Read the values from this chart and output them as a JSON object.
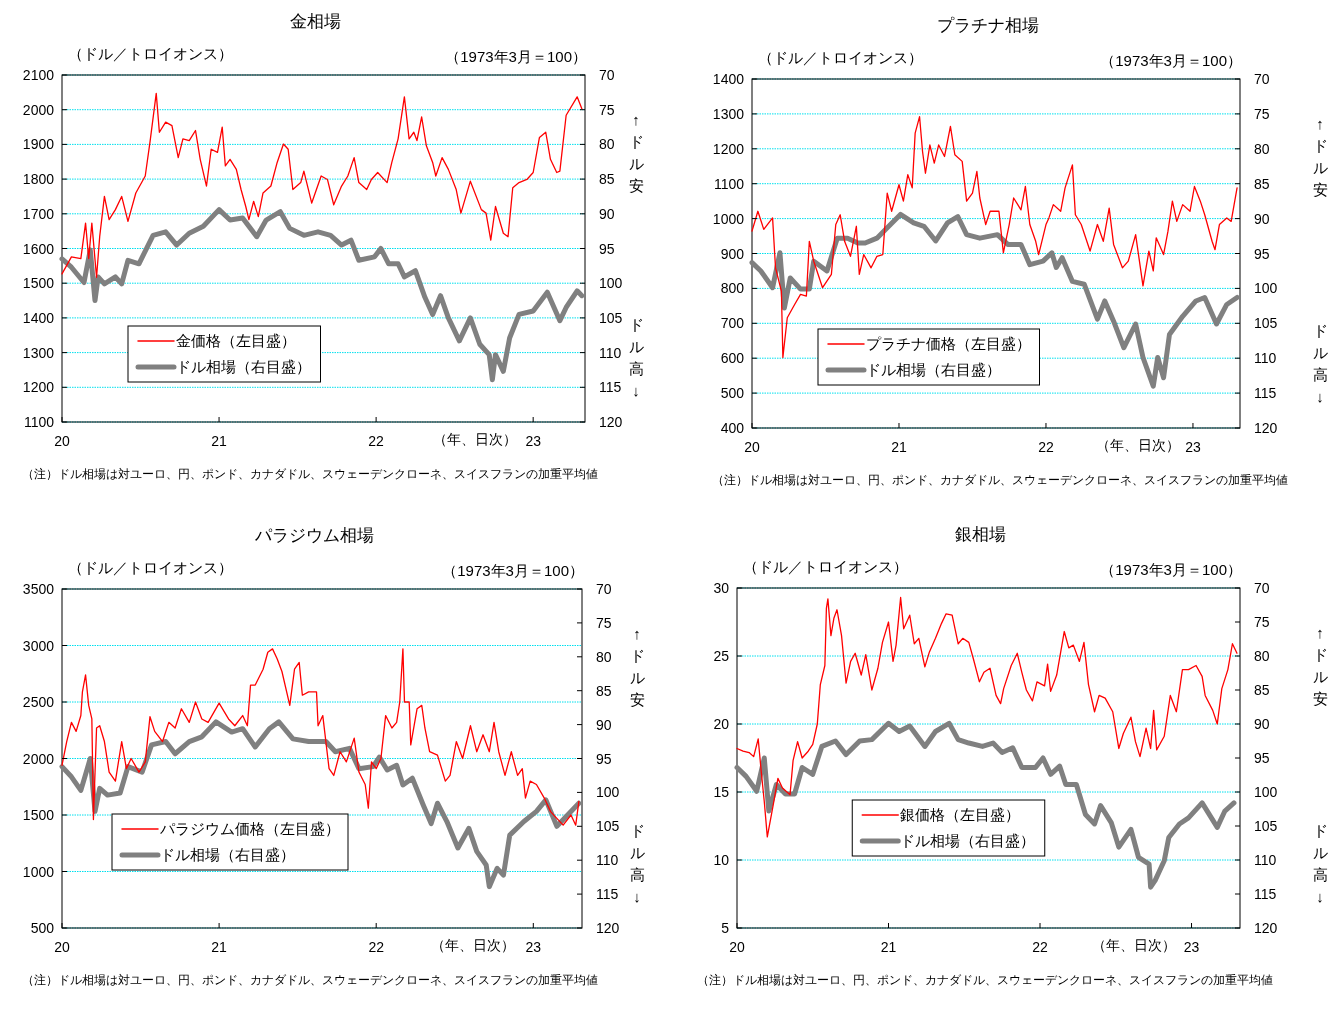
{
  "chart_data": [
    {
      "type": "line",
      "title": "金相場",
      "ylabel": "（ドル／トロイオンス）",
      "y2label": "（1973年3月＝100）",
      "xlabel": "（年、日次）",
      "xlim": [
        20,
        23.33
      ],
      "xticks": [
        20,
        21,
        22,
        23
      ],
      "ylim": [
        1100,
        2100
      ],
      "yticks": [
        1100,
        1200,
        1300,
        1400,
        1500,
        1600,
        1700,
        1800,
        1900,
        2000,
        2100
      ],
      "y2lim": [
        120,
        70
      ],
      "y2ticks": [
        70,
        75,
        80,
        85,
        90,
        95,
        100,
        105,
        110,
        115,
        120
      ],
      "grid": "y",
      "legend": "bottom left",
      "annotations": [
        "↑ドル安",
        "ドル高↓",
        "（注）ドル相場は対ユーロ、円、ポンド、カナダドル、スウェーデンクローネ、スイスフランの加重平均値"
      ],
      "series": [
        {
          "name": "金価格（左目盛）",
          "color": "#ff0000",
          "x": [
            20.0,
            20.06,
            20.12,
            20.15,
            20.17,
            20.19,
            20.22,
            20.24,
            20.27,
            20.3,
            20.34,
            20.38,
            20.42,
            20.47,
            20.53,
            20.56,
            20.6,
            20.62,
            20.66,
            20.7,
            20.74,
            20.77,
            20.81,
            20.85,
            20.88,
            20.92,
            20.95,
            20.99,
            21.02,
            21.04,
            21.07,
            21.11,
            21.14,
            21.17,
            21.19,
            21.22,
            21.25,
            21.28,
            21.33,
            21.37,
            21.41,
            21.44,
            21.47,
            21.52,
            21.54,
            21.59,
            21.65,
            21.69,
            21.73,
            21.78,
            21.82,
            21.86,
            21.89,
            21.94,
            21.97,
            22.01,
            22.07,
            22.1,
            22.14,
            22.18,
            22.21,
            22.24,
            22.26,
            22.29,
            22.32,
            22.36,
            22.38,
            22.42,
            22.46,
            22.51,
            22.54,
            22.6,
            22.67,
            22.7,
            22.73,
            22.76,
            22.81,
            22.84,
            22.87,
            22.91,
            22.96,
            23.0,
            23.04,
            23.08,
            23.11,
            23.15,
            23.17,
            23.21,
            23.28,
            23.31
          ],
          "values": [
            1527,
            1576,
            1571,
            1673,
            1571,
            1673,
            1517,
            1634,
            1750,
            1683,
            1712,
            1750,
            1678,
            1760,
            1809,
            1906,
            2047,
            1935,
            1964,
            1954,
            1862,
            1916,
            1911,
            1940,
            1857,
            1780,
            1886,
            1877,
            1950,
            1838,
            1857,
            1828,
            1770,
            1721,
            1683,
            1736,
            1692,
            1760,
            1780,
            1848,
            1901,
            1886,
            1770,
            1790,
            1823,
            1731,
            1809,
            1799,
            1726,
            1780,
            1809,
            1862,
            1790,
            1770,
            1799,
            1819,
            1790,
            1848,
            1916,
            2037,
            1916,
            1935,
            1911,
            1979,
            1896,
            1848,
            1809,
            1862,
            1828,
            1770,
            1702,
            1794,
            1712,
            1702,
            1624,
            1721,
            1644,
            1634,
            1775,
            1790,
            1799,
            1819,
            1920,
            1935,
            1857,
            1819,
            1823,
            1984,
            2037,
            2003
          ]
        },
        {
          "name": "ドル相場（右目盛）",
          "color": "#808080",
          "axis": "y2",
          "x": [
            20.0,
            20.06,
            20.14,
            20.18,
            20.21,
            20.23,
            20.27,
            20.34,
            20.38,
            20.42,
            20.49,
            20.58,
            20.66,
            20.73,
            20.81,
            20.9,
            21.0,
            21.07,
            21.15,
            21.24,
            21.3,
            21.39,
            21.45,
            21.54,
            21.63,
            21.71,
            21.78,
            21.84,
            21.89,
            21.99,
            22.03,
            22.08,
            22.14,
            22.18,
            22.25,
            22.31,
            22.36,
            22.41,
            22.46,
            22.53,
            22.6,
            22.66,
            22.72,
            22.74,
            22.76,
            22.81,
            22.85,
            22.91,
            23.0,
            23.09,
            23.17,
            23.21,
            23.28,
            23.31
          ],
          "values": [
            96.5,
            97.7,
            99.9,
            95.2,
            102.5,
            99.1,
            100.1,
            99.1,
            100.1,
            96.7,
            97.2,
            93.1,
            92.6,
            94.5,
            92.8,
            91.8,
            89.4,
            90.9,
            90.6,
            93.3,
            90.9,
            89.7,
            92.1,
            93.1,
            92.6,
            93.1,
            94.5,
            93.8,
            96.7,
            96.2,
            95.0,
            97.2,
            97.2,
            99.1,
            98.2,
            102.0,
            104.5,
            101.8,
            105.0,
            108.3,
            105.0,
            108.8,
            110.3,
            113.9,
            110.3,
            112.7,
            107.9,
            104.5,
            104.0,
            101.3,
            105.4,
            103.5,
            101.1,
            101.8
          ]
        }
      ]
    },
    {
      "type": "line",
      "title": "プラチナ相場",
      "ylabel": "（ドル／トロイオンス）",
      "y2label": "（1973年3月＝100）",
      "xlabel": "（年、日次）",
      "xlim": [
        20,
        23.32
      ],
      "xticks": [
        20,
        21,
        22,
        23
      ],
      "ylim": [
        400,
        1400
      ],
      "yticks": [
        400,
        500,
        600,
        700,
        800,
        900,
        1000,
        1100,
        1200,
        1300,
        1400
      ],
      "y2lim": [
        120,
        70
      ],
      "y2ticks": [
        70,
        75,
        80,
        85,
        90,
        95,
        100,
        105,
        110,
        115,
        120
      ],
      "grid": "y",
      "legend": "bottom left",
      "annotations": [
        "↑ドル安",
        "ドル高↓",
        "（注）ドル相場は対ユーロ、円、ポンド、カナダドル、スウェーデンクローネ、スイスフランの加重平均値"
      ],
      "series": [
        {
          "name": "プラチナ価格（左目盛）",
          "color": "#ff0000",
          "x": [
            20.0,
            20.04,
            20.08,
            20.14,
            20.16,
            20.2,
            20.21,
            20.24,
            20.29,
            20.33,
            20.37,
            20.39,
            20.42,
            20.45,
            20.48,
            20.54,
            20.57,
            20.6,
            20.63,
            20.67,
            20.71,
            20.73,
            20.76,
            20.81,
            20.85,
            20.89,
            20.92,
            20.95,
            21.0,
            21.03,
            21.06,
            21.09,
            21.11,
            21.14,
            21.16,
            21.18,
            21.21,
            21.24,
            21.27,
            21.31,
            21.35,
            21.38,
            21.43,
            21.46,
            21.5,
            21.53,
            21.55,
            21.59,
            21.62,
            21.68,
            21.71,
            21.75,
            21.78,
            21.83,
            21.86,
            21.89,
            21.93,
            21.95,
            22.0,
            22.02,
            22.05,
            22.1,
            22.13,
            22.18,
            22.2,
            22.24,
            22.3,
            22.35,
            22.39,
            22.43,
            22.46,
            22.52,
            22.56,
            22.61,
            22.66,
            22.7,
            22.73,
            22.75,
            22.8,
            22.83,
            22.86,
            22.89,
            22.93,
            22.98,
            23.01,
            23.05,
            23.08,
            23.13,
            23.15,
            23.18,
            23.23,
            23.26,
            23.3
          ],
          "values": [
            964,
            1021,
            969,
            1002,
            859,
            792,
            602,
            716,
            754,
            783,
            778,
            935,
            878,
            840,
            802,
            840,
            983,
            1011,
            935,
            892,
            978,
            840,
            897,
            859,
            892,
            897,
            1073,
            1021,
            1097,
            1050,
            1126,
            1088,
            1245,
            1292,
            1193,
            1130,
            1211,
            1159,
            1211,
            1178,
            1264,
            1183,
            1164,
            1050,
            1073,
            1135,
            1059,
            983,
            1021,
            1021,
            902,
            983,
            1059,
            1025,
            1092,
            983,
            935,
            897,
            983,
            1002,
            1040,
            1021,
            1088,
            1154,
            1011,
            983,
            907,
            983,
            935,
            1030,
            926,
            859,
            878,
            954,
            807,
            907,
            850,
            945,
            897,
            964,
            1050,
            992,
            1040,
            1021,
            1092,
            1050,
            1011,
            935,
            911,
            983,
            1002,
            992,
            1088
          ]
        },
        {
          "name": "ドル相場（右目盛）",
          "color": "#808080",
          "axis": "y2",
          "x": [
            20.0,
            20.06,
            20.14,
            20.19,
            20.22,
            20.26,
            20.33,
            20.39,
            20.42,
            20.51,
            20.58,
            20.65,
            20.72,
            20.77,
            20.85,
            20.92,
            21.01,
            21.1,
            21.17,
            21.25,
            21.33,
            21.4,
            21.46,
            21.55,
            21.67,
            21.74,
            21.83,
            21.89,
            21.98,
            22.04,
            22.07,
            22.11,
            22.18,
            22.26,
            22.35,
            22.4,
            22.46,
            22.53,
            22.61,
            22.66,
            22.73,
            22.76,
            22.8,
            22.84,
            22.93,
            23.02,
            23.08,
            23.16,
            23.23,
            23.3
          ],
          "values": [
            96.3,
            97.5,
            99.9,
            94.9,
            102.8,
            98.5,
            100.1,
            100.1,
            96.1,
            97.5,
            92.8,
            92.8,
            93.5,
            93.5,
            92.8,
            91.3,
            89.4,
            90.6,
            91.1,
            93.2,
            90.6,
            89.7,
            92.3,
            92.8,
            92.3,
            93.7,
            93.7,
            96.6,
            96.1,
            94.9,
            97.0,
            95.6,
            99.0,
            99.4,
            104.4,
            101.8,
            104.7,
            108.5,
            105.1,
            109.9,
            114.0,
            109.9,
            112.8,
            106.6,
            104.0,
            101.8,
            101.3,
            105.1,
            102.3,
            101.3
          ]
        }
      ]
    },
    {
      "type": "line",
      "title": "パラジウム相場",
      "ylabel": "（ドル／トロイオンス）",
      "y2label": "（1973年3月＝100）",
      "xlabel": "（年、日次）",
      "xlim": [
        20,
        23.31
      ],
      "xticks": [
        20,
        21,
        22,
        23
      ],
      "ylim": [
        500,
        3500
      ],
      "yticks": [
        500,
        1000,
        1500,
        2000,
        2500,
        3000,
        3500
      ],
      "y2lim": [
        120,
        70
      ],
      "y2ticks": [
        70,
        75,
        80,
        85,
        90,
        95,
        100,
        105,
        110,
        115,
        120
      ],
      "grid": "y",
      "legend": "bottom left",
      "annotations": [
        "↑ドル安",
        "ドル高↓",
        "（注）ドル相場は対ユーロ、円、ポンド、カナダドル、スウェーデンクローネ、スイスフランの加重平均値"
      ],
      "series": [
        {
          "name": "パラジウム価格（左目盛）",
          "color": "#ff0000",
          "x": [
            20.0,
            20.03,
            20.06,
            20.09,
            20.12,
            20.13,
            20.15,
            20.17,
            20.19,
            20.2,
            20.22,
            20.24,
            20.27,
            20.3,
            20.34,
            20.38,
            20.41,
            20.44,
            20.49,
            20.53,
            20.56,
            20.59,
            20.64,
            20.68,
            20.72,
            20.76,
            20.81,
            20.85,
            20.89,
            20.93,
            21.0,
            21.06,
            21.1,
            21.15,
            21.18,
            21.2,
            21.23,
            21.28,
            21.31,
            21.34,
            21.37,
            21.4,
            21.45,
            21.48,
            21.51,
            21.53,
            21.57,
            21.62,
            21.63,
            21.66,
            21.7,
            21.73,
            21.77,
            21.81,
            21.86,
            21.89,
            21.93,
            21.95,
            21.97,
            22.0,
            22.03,
            22.06,
            22.1,
            22.13,
            22.15,
            22.17,
            22.18,
            22.21,
            22.22,
            22.26,
            22.29,
            22.31,
            22.34,
            22.39,
            22.44,
            22.47,
            22.51,
            22.55,
            22.6,
            22.64,
            22.68,
            22.72,
            22.75,
            22.78,
            22.82,
            22.86,
            22.9,
            22.93,
            22.95,
            22.98,
            23.02,
            23.07,
            23.11,
            23.15,
            23.19,
            23.24,
            23.27,
            23.29
          ],
          "values": [
            1940,
            2150,
            2320,
            2240,
            2380,
            2590,
            2740,
            2470,
            2350,
            1460,
            2270,
            2290,
            2150,
            1880,
            1800,
            2150,
            1910,
            2000,
            1880,
            1970,
            2370,
            2240,
            2150,
            2320,
            2270,
            2440,
            2320,
            2500,
            2350,
            2320,
            2490,
            2350,
            2290,
            2380,
            2290,
            2650,
            2650,
            2790,
            2940,
            2970,
            2880,
            2770,
            2470,
            2790,
            2850,
            2560,
            2590,
            2590,
            2290,
            2380,
            1910,
            1850,
            2060,
            1970,
            2180,
            1880,
            1770,
            1560,
            1970,
            1910,
            2000,
            2380,
            2270,
            2320,
            2500,
            2970,
            2500,
            2500,
            2120,
            2440,
            2470,
            2270,
            2060,
            2030,
            1800,
            1850,
            2150,
            2000,
            2290,
            2060,
            2210,
            2060,
            2320,
            2060,
            1850,
            2060,
            1850,
            1910,
            1650,
            1800,
            1770,
            1650,
            1530,
            1470,
            1410,
            1500,
            1410,
            1620
          ]
        },
        {
          "name": "ドル相場（右目盛）",
          "color": "#808080",
          "axis": "y2",
          "x": [
            20.0,
            20.06,
            20.12,
            20.18,
            20.21,
            20.24,
            20.29,
            20.37,
            20.42,
            20.51,
            20.57,
            20.66,
            20.72,
            20.81,
            20.89,
            20.98,
            21.08,
            21.15,
            21.23,
            21.32,
            21.38,
            21.47,
            21.57,
            21.68,
            21.74,
            21.83,
            21.89,
            21.98,
            22.02,
            22.07,
            22.13,
            22.17,
            22.23,
            22.3,
            22.35,
            22.39,
            22.45,
            22.52,
            22.59,
            22.64,
            22.7,
            22.72,
            22.77,
            22.81,
            22.85,
            22.94,
            23.02,
            23.08,
            23.15,
            23.22,
            23.29
          ],
          "values": [
            96.2,
            97.7,
            99.7,
            95.0,
            102.8,
            99.4,
            100.4,
            100.1,
            96.2,
            97.0,
            93.0,
            92.5,
            94.3,
            92.5,
            91.8,
            89.6,
            91.1,
            90.6,
            93.3,
            90.6,
            89.6,
            92.1,
            92.5,
            92.5,
            94.0,
            93.5,
            96.5,
            96.2,
            94.8,
            96.7,
            96.0,
            98.9,
            97.9,
            101.9,
            104.6,
            101.6,
            104.3,
            108.2,
            105.3,
            108.7,
            110.7,
            113.9,
            111.2,
            112.2,
            106.3,
            104.3,
            102.8,
            101.1,
            105.0,
            103.3,
            101.6
          ]
        }
      ]
    },
    {
      "type": "line",
      "title": "銀相場",
      "ylabel": "（ドル／トロイオンス）",
      "y2label": "（1973年3月＝100）",
      "xlabel": "（年、日次）",
      "xlim": [
        20,
        23.32
      ],
      "xticks": [
        20,
        21,
        22,
        23
      ],
      "ylim": [
        5,
        30
      ],
      "yticks": [
        5,
        10,
        15,
        20,
        25,
        30
      ],
      "y2lim": [
        120,
        70
      ],
      "y2ticks": [
        70,
        75,
        80,
        85,
        90,
        95,
        100,
        105,
        110,
        115,
        120
      ],
      "grid": "y",
      "legend": "bottom",
      "annotations": [
        "↑ドル安",
        "ドル高↓",
        "（注）ドル相場は対ユーロ、円、ポンド、カナダドル、スウェーデンクローネ、スイスフランの加重平均値"
      ],
      "series": [
        {
          "name": "銀価格（左目盛）",
          "color": "#ff0000",
          "x": [
            20.0,
            20.04,
            20.08,
            20.11,
            20.14,
            20.16,
            20.18,
            20.2,
            20.24,
            20.27,
            20.3,
            20.35,
            20.37,
            20.4,
            20.43,
            20.47,
            20.5,
            20.53,
            20.55,
            20.58,
            20.59,
            20.6,
            20.62,
            20.64,
            20.66,
            20.69,
            20.72,
            20.75,
            20.78,
            20.82,
            20.85,
            20.89,
            20.93,
            20.96,
            21.0,
            21.03,
            21.05,
            21.08,
            21.1,
            21.14,
            21.17,
            21.2,
            21.24,
            21.27,
            21.31,
            21.35,
            21.38,
            21.42,
            21.46,
            21.49,
            21.53,
            21.56,
            21.6,
            21.63,
            21.67,
            21.71,
            21.74,
            21.76,
            21.81,
            21.85,
            21.88,
            21.91,
            21.95,
            21.98,
            22.03,
            22.05,
            22.07,
            22.11,
            22.16,
            22.19,
            22.22,
            22.26,
            22.29,
            22.32,
            22.36,
            22.39,
            22.43,
            22.48,
            22.52,
            22.55,
            22.6,
            22.63,
            22.66,
            22.7,
            22.73,
            22.75,
            22.77,
            22.82,
            22.86,
            22.9,
            22.94,
            22.98,
            23.03,
            23.07,
            23.09,
            23.14,
            23.17,
            23.2,
            23.24,
            23.27,
            23.3
          ],
          "values": [
            18.2,
            18.0,
            17.9,
            17.6,
            18.9,
            16.5,
            14.3,
            11.7,
            14.1,
            16.0,
            15.3,
            14.8,
            17.3,
            18.7,
            17.5,
            18.0,
            18.5,
            20.0,
            22.9,
            24.3,
            28.5,
            29.2,
            26.5,
            27.8,
            28.4,
            26.5,
            23.0,
            24.6,
            25.2,
            23.6,
            25.1,
            22.5,
            24.1,
            26.0,
            27.5,
            24.6,
            25.8,
            29.3,
            27.0,
            28.0,
            25.9,
            26.3,
            24.2,
            25.3,
            26.3,
            27.4,
            28.1,
            28.0,
            25.9,
            26.3,
            26.0,
            24.8,
            23.1,
            23.8,
            24.1,
            22.1,
            21.5,
            22.6,
            24.3,
            25.2,
            23.8,
            22.5,
            21.7,
            23.1,
            22.8,
            24.4,
            22.4,
            23.6,
            26.8,
            25.6,
            25.8,
            24.6,
            26.0,
            22.9,
            20.9,
            22.1,
            21.9,
            20.9,
            18.2,
            19.3,
            20.5,
            18.7,
            17.6,
            19.7,
            18.2,
            21.0,
            18.1,
            19.1,
            22.1,
            20.9,
            24.0,
            24.0,
            24.3,
            23.5,
            22.1,
            21.0,
            20.0,
            22.6,
            24.0,
            25.9,
            25.2
          ]
        },
        {
          "name": "ドル相場（右目盛）",
          "color": "#808080",
          "axis": "y2",
          "x": [
            20.0,
            20.06,
            20.13,
            20.18,
            20.21,
            20.26,
            20.32,
            20.38,
            20.43,
            20.5,
            20.56,
            20.65,
            20.72,
            20.81,
            20.89,
            21.0,
            21.07,
            21.14,
            21.24,
            21.31,
            21.4,
            21.46,
            21.53,
            21.62,
            21.69,
            21.75,
            21.82,
            21.88,
            21.97,
            22.02,
            22.07,
            22.13,
            22.17,
            22.24,
            22.3,
            22.36,
            22.4,
            22.47,
            22.52,
            22.6,
            22.65,
            22.72,
            22.73,
            22.76,
            22.82,
            22.85,
            22.92,
            22.98,
            23.07,
            23.17,
            23.22,
            23.28
          ],
          "values": [
            96.4,
            97.7,
            99.9,
            95.0,
            102.8,
            98.9,
            100.3,
            100.3,
            96.4,
            97.4,
            93.3,
            92.5,
            94.5,
            92.5,
            92.3,
            89.9,
            91.1,
            90.3,
            93.3,
            91.1,
            89.9,
            92.3,
            92.8,
            93.3,
            92.8,
            94.2,
            93.5,
            96.4,
            96.4,
            95.0,
            97.4,
            96.2,
            98.9,
            98.9,
            103.3,
            104.7,
            102.0,
            104.5,
            108.1,
            105.5,
            109.6,
            110.6,
            114.0,
            113.0,
            110.1,
            106.7,
            104.7,
            103.8,
            101.6,
            105.2,
            102.8,
            101.6
          ]
        }
      ]
    }
  ]
}
